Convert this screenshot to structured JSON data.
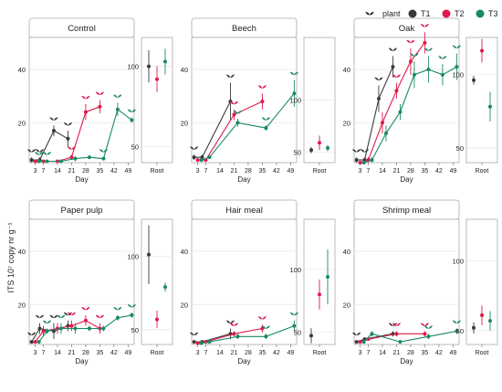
{
  "legend": {
    "plant_label": "plant",
    "items": [
      {
        "name": "T1",
        "color": "#3a3a3a"
      },
      {
        "name": "T2",
        "color": "#e0194a"
      },
      {
        "name": "T3",
        "color": "#1a8a64"
      }
    ]
  },
  "y_axis_label": "ITS 10⁷ copy nr g⁻¹",
  "x_axis_label": "Day",
  "root_label": "Root",
  "chart_data": [
    {
      "type": "line",
      "title": "Control",
      "x": [
        3,
        7,
        14,
        21,
        28,
        35,
        42,
        49
      ],
      "x_ticks": [
        3,
        7,
        14,
        21,
        28,
        35,
        42,
        49
      ],
      "ylim": [
        5,
        52
      ],
      "y_ticks": [
        20,
        40
      ],
      "series": [
        {
          "name": "T1",
          "x": [
            3,
            7,
            14,
            21
          ],
          "values": [
            6,
            6,
            17,
            14
          ],
          "err": [
            1,
            1,
            2,
            3
          ],
          "plant_days": [
            3,
            7,
            14,
            21
          ]
        },
        {
          "name": "T2",
          "x": [
            3,
            7,
            14,
            21,
            28,
            35
          ],
          "values": [
            5.5,
            5.5,
            5.5,
            7,
            24,
            26
          ],
          "err": [
            0.5,
            0.5,
            0.5,
            1,
            3,
            2.5
          ],
          "plant_days": [
            21,
            28,
            35
          ]
        },
        {
          "name": "T3",
          "x": [
            3,
            7,
            14,
            21,
            28,
            35,
            42,
            49
          ],
          "values": [
            5.5,
            5.5,
            5.5,
            6.5,
            7,
            6.5,
            25,
            21
          ],
          "err": [
            0.5,
            0.5,
            0.5,
            1,
            0.5,
            0.5,
            2.5,
            1
          ],
          "plant_days": [
            3,
            7,
            35,
            42,
            49
          ]
        }
      ],
      "root": {
        "ylim": [
          40,
          118
        ],
        "y_ticks": [
          50,
          100
        ],
        "values": [
          100,
          92,
          103
        ],
        "err": [
          10,
          8,
          8
        ]
      }
    },
    {
      "type": "line",
      "title": "Beech",
      "x": [
        3,
        7,
        14,
        21,
        28,
        35,
        42,
        49
      ],
      "x_ticks": [
        3,
        7,
        14,
        21,
        28,
        35,
        42,
        49
      ],
      "ylim": [
        5,
        52
      ],
      "y_ticks": [
        20,
        40
      ],
      "series": [
        {
          "name": "T1",
          "x": [
            3,
            7,
            21
          ],
          "values": [
            7,
            7,
            28
          ],
          "err": [
            1,
            1,
            7
          ],
          "plant_days": [
            3,
            21
          ]
        },
        {
          "name": "T2",
          "x": [
            3,
            7,
            21,
            35
          ],
          "values": [
            6,
            6,
            23,
            28
          ],
          "err": [
            0.5,
            0.5,
            2,
            3
          ],
          "plant_days": [
            21,
            35
          ]
        },
        {
          "name": "T3",
          "x": [
            3,
            7,
            21,
            35,
            49
          ],
          "values": [
            6,
            7,
            20,
            18,
            31
          ],
          "err": [
            0.5,
            0.5,
            1.5,
            1,
            5
          ],
          "plant_days": [
            21,
            35,
            49
          ]
        }
      ],
      "root": {
        "ylim": [
          40,
          160
        ],
        "y_ticks": [
          50,
          100
        ],
        "values": [
          52,
          59,
          54
        ],
        "err": [
          3,
          7,
          3
        ]
      }
    },
    {
      "type": "line",
      "title": "Oak",
      "x": [
        3,
        7,
        14,
        21,
        28,
        35,
        42,
        49
      ],
      "x_ticks": [
        3,
        7,
        14,
        21,
        28,
        35,
        42,
        49
      ],
      "ylim": [
        5,
        52
      ],
      "y_ticks": [
        20,
        40
      ],
      "series": [
        {
          "name": "T1",
          "x": [
            3,
            7,
            14,
            21
          ],
          "values": [
            6,
            6,
            29,
            41
          ],
          "err": [
            1,
            1,
            5,
            4
          ],
          "plant_days": [
            3,
            7,
            14,
            21
          ]
        },
        {
          "name": "T2",
          "x": [
            3,
            7,
            14,
            21,
            28,
            35
          ],
          "values": [
            5,
            6,
            20,
            32,
            43,
            50
          ],
          "err": [
            0.5,
            1,
            4,
            3,
            5,
            4
          ],
          "plant_days": [
            21,
            28,
            35
          ]
        },
        {
          "name": "T3",
          "x": [
            3,
            7,
            14,
            21,
            28,
            35,
            42,
            49
          ],
          "values": [
            5,
            6,
            16,
            24,
            38,
            40,
            38,
            41
          ],
          "err": [
            0.5,
            1,
            3,
            3,
            5,
            5,
            4,
            5
          ],
          "plant_days": [
            28,
            35,
            42,
            49
          ]
        }
      ],
      "root": {
        "ylim": [
          40,
          125
        ],
        "y_ticks": [
          50,
          100
        ],
        "values": [
          96,
          116,
          78
        ],
        "err": [
          3,
          8,
          10
        ]
      }
    },
    {
      "type": "line",
      "title": "Paper pulp",
      "x": [
        3,
        7,
        14,
        21,
        28,
        35,
        42,
        49
      ],
      "x_ticks": [
        3,
        7,
        14,
        21,
        28,
        35,
        42,
        49
      ],
      "ylim": [
        5,
        52
      ],
      "y_ticks": [
        20,
        40
      ],
      "series": [
        {
          "name": "T1",
          "x": [
            3,
            7,
            14,
            21
          ],
          "values": [
            6,
            11,
            10,
            12
          ],
          "err": [
            0.5,
            2,
            3,
            2
          ],
          "plant_days": [
            3,
            7,
            14,
            21
          ]
        },
        {
          "name": "T2",
          "x": [
            3,
            7,
            14,
            21,
            28,
            35
          ],
          "values": [
            6,
            10,
            11,
            12,
            14,
            11
          ],
          "err": [
            0.5,
            2,
            2,
            2,
            2,
            2
          ],
          "plant_days": [
            21,
            28,
            35
          ]
        },
        {
          "name": "T3",
          "x": [
            3,
            7,
            14,
            21,
            28,
            35,
            42,
            49
          ],
          "values": [
            6,
            10,
            11,
            11,
            11,
            11,
            15,
            16
          ],
          "err": [
            0.5,
            1,
            2,
            2,
            1,
            1,
            1,
            1
          ],
          "plant_days": [
            7,
            14,
            42,
            49
          ]
        }
      ],
      "root": {
        "ylim": [
          40,
          125
        ],
        "y_ticks": [
          50,
          100
        ],
        "values": [
          101,
          57,
          79
        ],
        "err": [
          20,
          6,
          3
        ]
      }
    },
    {
      "type": "line",
      "title": "Hair meal",
      "x": [
        3,
        7,
        14,
        21,
        28,
        35,
        42,
        49
      ],
      "x_ticks": [
        3,
        7,
        14,
        21,
        28,
        35,
        42,
        49
      ],
      "ylim": [
        5,
        52
      ],
      "y_ticks": [
        20,
        40
      ],
      "series": [
        {
          "name": "T1",
          "x": [
            3,
            7,
            21
          ],
          "values": [
            6,
            6,
            9
          ],
          "err": [
            0.5,
            0.5,
            2
          ],
          "plant_days": [
            3,
            21
          ]
        },
        {
          "name": "T2",
          "x": [
            3,
            7,
            21,
            35
          ],
          "values": [
            5.5,
            6,
            9,
            11
          ],
          "err": [
            0.5,
            0.5,
            1,
            1.5
          ],
          "plant_days": [
            21,
            35
          ]
        },
        {
          "name": "T3",
          "x": [
            3,
            7,
            21,
            35,
            49
          ],
          "values": [
            5.5,
            6,
            8,
            8,
            12
          ],
          "err": [
            0.5,
            0.5,
            1,
            1,
            2
          ],
          "plant_days": [
            35,
            49
          ]
        }
      ],
      "root": {
        "ylim": [
          40,
          140
        ],
        "y_ticks": [
          50,
          100
        ],
        "values": [
          47,
          80,
          94
        ],
        "err": [
          6,
          12,
          22
        ]
      }
    },
    {
      "type": "line",
      "title": "Shrimp meal",
      "x": [
        3,
        7,
        14,
        21,
        28,
        35,
        42,
        49
      ],
      "x_ticks": [
        3,
        7,
        14,
        21,
        28,
        35,
        42,
        49
      ],
      "ylim": [
        5,
        52
      ],
      "y_ticks": [
        20,
        40
      ],
      "series": [
        {
          "name": "T1",
          "x": [
            3,
            7,
            21
          ],
          "values": [
            6,
            7,
            9
          ],
          "err": [
            0.5,
            0.5,
            1
          ],
          "plant_days": [
            3,
            21
          ]
        },
        {
          "name": "T2",
          "x": [
            3,
            7,
            21,
            35
          ],
          "values": [
            6,
            7,
            9,
            9
          ],
          "err": [
            0.5,
            0.5,
            1,
            1
          ],
          "plant_days": [
            21,
            35
          ]
        },
        {
          "name": "T3",
          "x": [
            3,
            7,
            21,
            35,
            49
          ],
          "values": [
            6,
            9,
            6,
            8,
            10
          ],
          "err": [
            0.5,
            1,
            0.5,
            1,
            1
          ],
          "plant_days": [
            35,
            49
          ]
        }
      ],
      "root": {
        "ylim": [
          40,
          130
        ],
        "y_ticks": [
          50,
          100
        ],
        "values": [
          52,
          61,
          57
        ],
        "err": [
          4,
          7,
          7
        ]
      }
    }
  ]
}
